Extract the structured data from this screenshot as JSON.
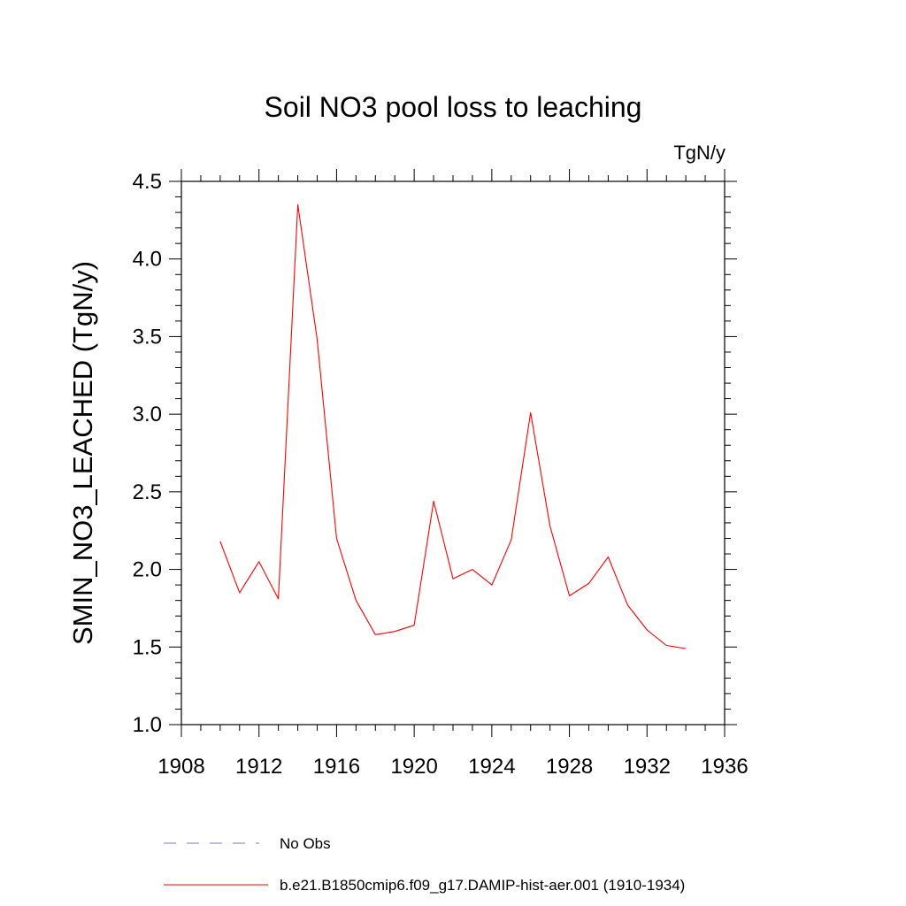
{
  "chart_data": {
    "type": "line",
    "title": "Soil NO3 pool loss to leaching",
    "units_label": "TgN/y",
    "ylabel": "SMIN_NO3_LEACHED  (TgN/y)",
    "xlabel": "",
    "xlim": [
      1908,
      1936
    ],
    "ylim": [
      1.0,
      4.5
    ],
    "x_ticks": [
      1908,
      1912,
      1916,
      1920,
      1924,
      1928,
      1932,
      1936
    ],
    "y_ticks": [
      "1.0",
      "1.5",
      "2.0",
      "2.5",
      "3.0",
      "3.5",
      "4.0",
      "4.5"
    ],
    "grid": false,
    "legend_position": "bottom",
    "series": [
      {
        "name": "b.e21.B1850cmip6.f09_g17.DAMIP-hist-aer.001 (1910-1934)",
        "color": "#ff0000",
        "style": "solid",
        "x": [
          1910,
          1911,
          1912,
          1913,
          1914,
          1915,
          1916,
          1917,
          1918,
          1919,
          1920,
          1921,
          1922,
          1923,
          1924,
          1925,
          1926,
          1927,
          1928,
          1929,
          1930,
          1931,
          1932,
          1933,
          1934
        ],
        "y": [
          2.18,
          1.85,
          2.05,
          1.81,
          4.35,
          3.48,
          2.2,
          1.8,
          1.58,
          1.6,
          1.64,
          2.44,
          1.94,
          2.0,
          1.9,
          2.19,
          3.01,
          2.28,
          1.83,
          1.91,
          2.08,
          1.77,
          1.61,
          1.51,
          1.49
        ]
      }
    ],
    "legend_entries": [
      {
        "label": "No Obs",
        "color": "#7b78c8",
        "style": "dashed"
      },
      {
        "label": "b.e21.B1850cmip6.f09_g17.DAMIP-hist-aer.001 (1910-1934)",
        "color": "#ff0000",
        "style": "solid"
      }
    ]
  }
}
